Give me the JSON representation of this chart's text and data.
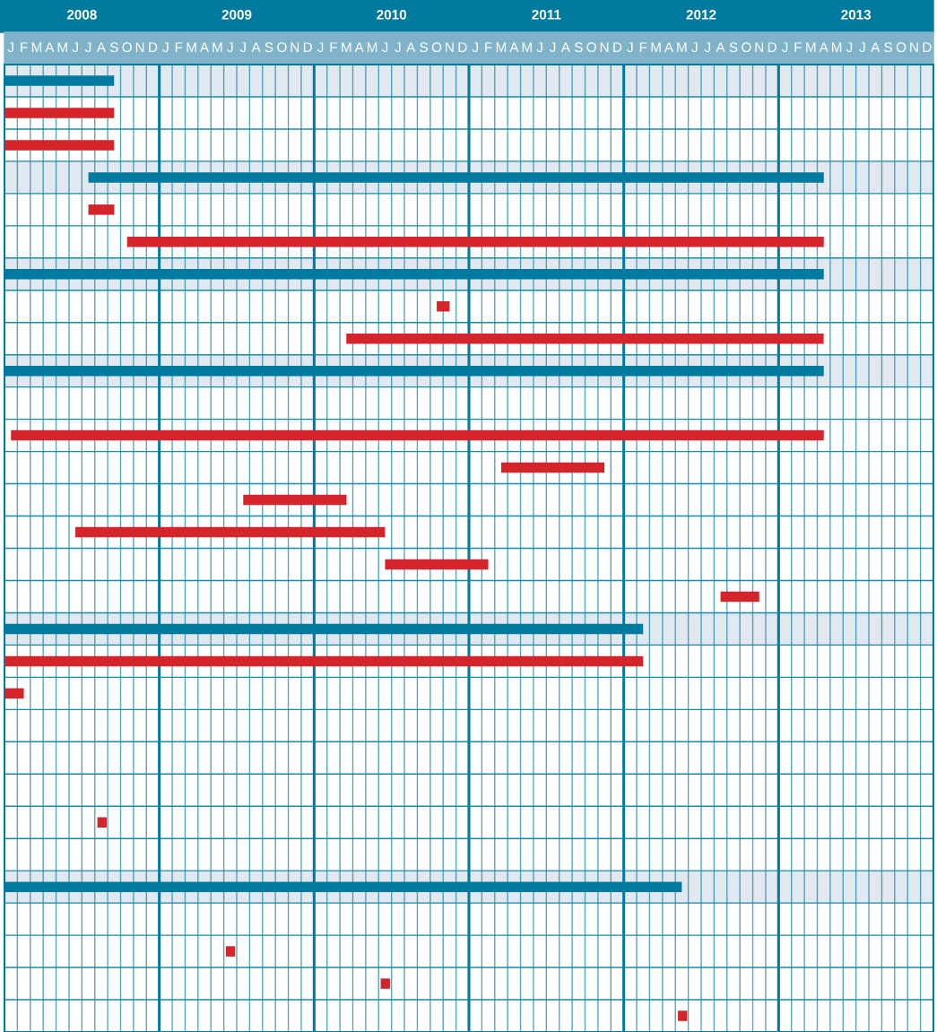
{
  "chart_data": {
    "type": "bar",
    "orientation": "horizontal",
    "categories": [
      null,
      null,
      null,
      null,
      null,
      null,
      null,
      null,
      null,
      null,
      null,
      null,
      null,
      null,
      null,
      null,
      null,
      null,
      null,
      null,
      null,
      null,
      null,
      null,
      null,
      null,
      null,
      null,
      null,
      null
    ],
    "series": [
      {
        "color": "#007a9e",
        "base": [
          2008,
          null,
          null,
          2008.542,
          null,
          null,
          2008,
          null,
          null,
          2008,
          null,
          null,
          null,
          null,
          null,
          null,
          null,
          2008,
          null,
          null,
          null,
          null,
          null,
          null,
          null,
          2008,
          null,
          null,
          null,
          null
        ],
        "values": [
          0.708,
          null,
          null,
          4.75,
          null,
          null,
          5.292,
          null,
          null,
          5.292,
          null,
          null,
          null,
          null,
          null,
          null,
          null,
          4.125,
          null,
          null,
          null,
          null,
          null,
          null,
          null,
          4.375,
          null,
          null,
          null,
          null
        ]
      },
      {
        "color": "#d4242c",
        "base": [
          null,
          2008,
          2008,
          null,
          2008.542,
          2008.792,
          null,
          2010.792,
          2010.208,
          null,
          null,
          2008.042,
          2011.208,
          2009.542,
          2008.458,
          2010.458,
          2012.625,
          null,
          2008,
          2008,
          null,
          null,
          null,
          2008.6,
          null,
          null,
          null,
          2009.43,
          2010.43,
          2012.35
        ],
        "values": [
          null,
          0.708,
          0.708,
          null,
          0.167,
          4.5,
          null,
          0.083,
          3.083,
          null,
          null,
          5.25,
          0.667,
          0.667,
          2,
          0.667,
          0.25,
          null,
          4.125,
          0.125,
          null,
          null,
          null,
          0.06,
          null,
          null,
          null,
          0.06,
          0.06,
          0.06
        ]
      }
    ],
    "xlim": [
      2008,
      2014
    ],
    "xticks": [
      {
        "value": 2008.5,
        "label": "2008"
      },
      {
        "value": 2009.5,
        "label": "2009"
      },
      {
        "value": 2010.5,
        "label": "2010"
      },
      {
        "value": 2011.5,
        "label": "2011"
      },
      {
        "value": 2012.5,
        "label": "2012"
      },
      {
        "value": 2013.5,
        "label": "2013"
      }
    ],
    "annotations": [
      "J",
      "F",
      "M",
      "A",
      "M",
      "J",
      "J",
      "A",
      "S",
      "O",
      "N",
      "D",
      "J",
      "F",
      "M",
      "A",
      "M",
      "J",
      "J",
      "A",
      "S",
      "O",
      "N",
      "D",
      "J",
      "F",
      "M",
      "A",
      "M",
      "J",
      "J",
      "A",
      "S",
      "O",
      "N",
      "D",
      "J",
      "F",
      "M",
      "A",
      "M",
      "J",
      "J",
      "A",
      "S",
      "O",
      "N",
      "D",
      "J",
      "F",
      "M",
      "A",
      "M",
      "J",
      "J",
      "A",
      "S",
      "O",
      "N",
      "D",
      "J",
      "F",
      "M",
      "A",
      "M",
      "J",
      "J",
      "A",
      "S",
      "O",
      "N",
      "D"
    ],
    "ref_lines": [
      {
        "axis": "x",
        "value": 2009,
        "color": "#007a9e"
      },
      {
        "axis": "x",
        "value": 2010,
        "color": "#007a9e"
      },
      {
        "axis": "x",
        "value": 2011,
        "color": "#007a9e"
      },
      {
        "axis": "x",
        "value": 2012,
        "color": "#007a9e"
      },
      {
        "axis": "x",
        "value": 2013,
        "color": "#007a9e"
      }
    ],
    "grid": "x"
  }
}
